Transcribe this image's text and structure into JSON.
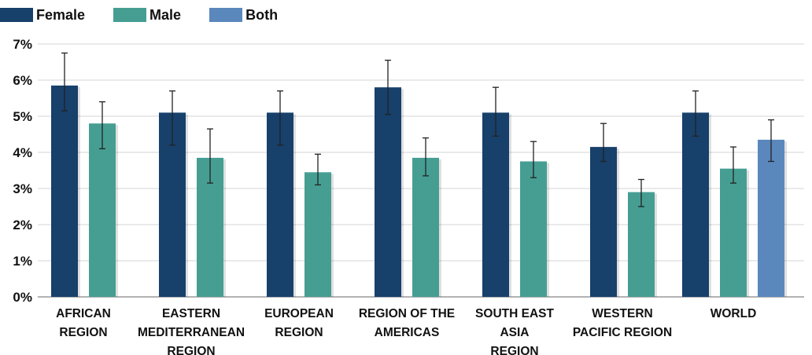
{
  "chart_data": {
    "type": "bar",
    "title": "",
    "xlabel": "",
    "ylabel": "",
    "ylim": [
      0,
      7
    ],
    "yticks": [
      "0%",
      "1%",
      "2%",
      "3%",
      "4%",
      "5%",
      "6%",
      "7%"
    ],
    "grid": true,
    "legend_position": "top-left",
    "categories": [
      [
        "AFRICAN",
        "REGION"
      ],
      [
        "EASTERN",
        "MEDITERRANEAN",
        "REGION"
      ],
      [
        "EUROPEAN",
        "REGION"
      ],
      [
        "REGION OF THE",
        "AMERICAS"
      ],
      [
        "SOUTH EAST",
        "ASIA",
        "REGION"
      ],
      [
        "WESTERN",
        "PACIFIC REGION"
      ],
      [
        "WORLD"
      ]
    ],
    "series": [
      {
        "name": "Female",
        "color": "#17406b",
        "values": [
          5.85,
          5.1,
          5.1,
          5.8,
          5.1,
          4.15,
          5.1
        ],
        "err_low": [
          5.15,
          4.2,
          4.2,
          5.05,
          4.45,
          3.75,
          4.45
        ],
        "err_high": [
          6.75,
          5.7,
          5.7,
          6.55,
          5.8,
          4.8,
          5.7
        ]
      },
      {
        "name": "Male",
        "color": "#469e93",
        "values": [
          4.8,
          3.85,
          3.45,
          3.85,
          3.75,
          2.9,
          3.55
        ],
        "err_low": [
          4.1,
          3.15,
          3.1,
          3.35,
          3.3,
          2.5,
          3.15
        ],
        "err_high": [
          5.4,
          4.65,
          3.95,
          4.4,
          4.3,
          3.25,
          4.15
        ]
      },
      {
        "name": "Both",
        "color": "#5a88bd",
        "values": [
          null,
          null,
          null,
          null,
          null,
          null,
          4.35
        ],
        "err_low": [
          null,
          null,
          null,
          null,
          null,
          null,
          3.75
        ],
        "err_high": [
          null,
          null,
          null,
          null,
          null,
          null,
          4.9
        ]
      }
    ]
  }
}
